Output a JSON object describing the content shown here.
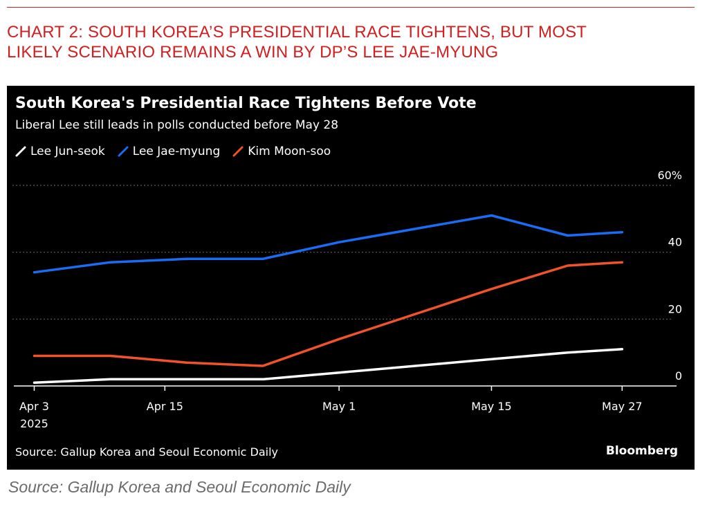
{
  "heading": {
    "line1": "CHART 2: SOUTH KOREA’S PRESIDENTIAL RACE TIGHTENS, BUT MOST",
    "line2": "LIKELY SCENARIO REMAINS A WIN BY DP’S LEE JAE-MYUNG"
  },
  "footer_source": "Source: Gallup Korea and Seoul Economic Daily",
  "colors": {
    "accent": "#d11f1f",
    "panel": "#000000",
    "lee_jun_seok": "#ffffff",
    "lee_jae_myung": "#1a6cf5",
    "kim_moon_soo": "#f0532c",
    "grid": "#5e5e5e"
  },
  "chart_data": {
    "type": "line",
    "title": "South Korea's Presidential Race Tightens Before Vote",
    "subtitle": "Liberal Lee still leads in polls conducted before May 28",
    "source": "Source: Gallup Korea and Seoul Economic Daily",
    "brand": "Bloomberg",
    "x_ticks": [
      {
        "date": "2025-04-03",
        "label": "Apr 3",
        "sublabel": "2025"
      },
      {
        "date": "2025-04-15",
        "label": "Apr 15",
        "sublabel": ""
      },
      {
        "date": "2025-05-01",
        "label": "May 1",
        "sublabel": ""
      },
      {
        "date": "2025-05-15",
        "label": "May 15",
        "sublabel": ""
      },
      {
        "date": "2025-05-27",
        "label": "May 27",
        "sublabel": ""
      }
    ],
    "xlim": [
      "2025-04-01",
      "2025-06-01"
    ],
    "y_ticks": [
      {
        "value": 0,
        "label": "0"
      },
      {
        "value": 20,
        "label": "20"
      },
      {
        "value": 40,
        "label": "40"
      },
      {
        "value": 60,
        "label": "60%"
      }
    ],
    "ylim": [
      0,
      60
    ],
    "grid": "horizontal-dotted",
    "legend_position": "top-left",
    "series": [
      {
        "name": "Lee Jun-seok",
        "color_key": "lee_jun_seok",
        "points": [
          {
            "date": "2025-04-03",
            "value": 1
          },
          {
            "date": "2025-04-10",
            "value": 2
          },
          {
            "date": "2025-04-24",
            "value": 2
          },
          {
            "date": "2025-05-01",
            "value": 4
          },
          {
            "date": "2025-05-15",
            "value": 8
          },
          {
            "date": "2025-05-22",
            "value": 10
          },
          {
            "date": "2025-05-27",
            "value": 11
          }
        ]
      },
      {
        "name": "Lee Jae-myung",
        "color_key": "lee_jae_myung",
        "points": [
          {
            "date": "2025-04-03",
            "value": 34
          },
          {
            "date": "2025-04-10",
            "value": 37
          },
          {
            "date": "2025-04-17",
            "value": 38
          },
          {
            "date": "2025-04-24",
            "value": 38
          },
          {
            "date": "2025-05-01",
            "value": 43
          },
          {
            "date": "2025-05-15",
            "value": 51
          },
          {
            "date": "2025-05-22",
            "value": 45
          },
          {
            "date": "2025-05-27",
            "value": 46
          }
        ]
      },
      {
        "name": "Kim Moon-soo",
        "color_key": "kim_moon_soo",
        "points": [
          {
            "date": "2025-04-03",
            "value": 9
          },
          {
            "date": "2025-04-10",
            "value": 9
          },
          {
            "date": "2025-04-17",
            "value": 7
          },
          {
            "date": "2025-04-24",
            "value": 6
          },
          {
            "date": "2025-05-01",
            "value": 14
          },
          {
            "date": "2025-05-15",
            "value": 29
          },
          {
            "date": "2025-05-22",
            "value": 36
          },
          {
            "date": "2025-05-27",
            "value": 37
          }
        ]
      }
    ]
  }
}
